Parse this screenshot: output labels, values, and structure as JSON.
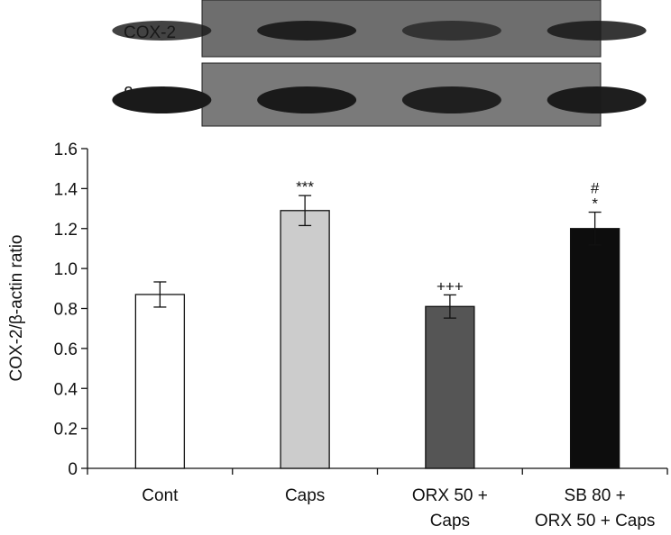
{
  "blot": {
    "rows": [
      {
        "label": "COX-2",
        "band_intensity": [
          0.82,
          0.95,
          0.7,
          0.88
        ]
      },
      {
        "label": "β-actin",
        "band_intensity": [
          1.0,
          1.0,
          0.95,
          0.98
        ]
      }
    ]
  },
  "chart_data": {
    "type": "bar",
    "categories": [
      [
        "Cont"
      ],
      [
        "Caps"
      ],
      [
        "ORX 50 +",
        "Caps"
      ],
      [
        "SB 80 +",
        "ORX 50 + Caps"
      ]
    ],
    "values": [
      0.87,
      1.29,
      0.81,
      1.2
    ],
    "errors": [
      0.063,
      0.075,
      0.058,
      0.082
    ],
    "colors": [
      "#ffffff",
      "#cccccc",
      "#555555",
      "#0d0d0d"
    ],
    "annotations": [
      [],
      [
        "***"
      ],
      [
        "+++"
      ],
      [
        "#",
        "*"
      ]
    ],
    "ylabel": "COX-2/β-actin ratio",
    "ylim": [
      0,
      1.6
    ],
    "yticks": [
      "0",
      "0.2",
      "0.4",
      "0.6",
      "0.8",
      "1.0",
      "1.2",
      "1.4",
      "1.6"
    ],
    "grid": false
  }
}
